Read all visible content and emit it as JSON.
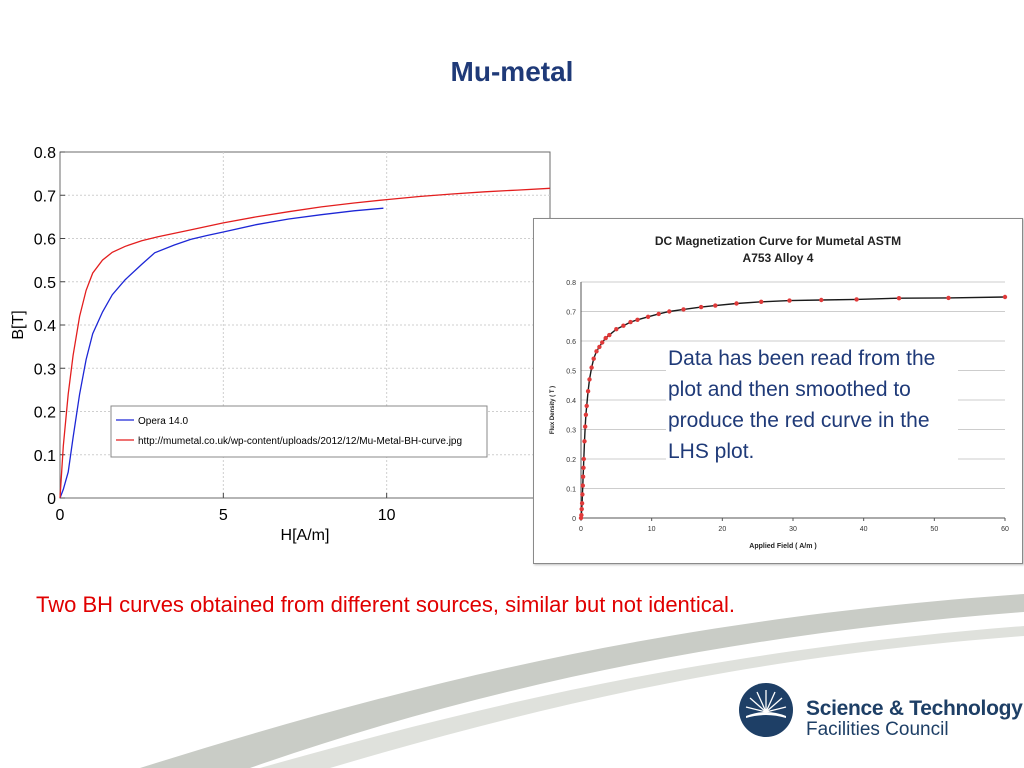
{
  "slide": {
    "title": "Mu-metal",
    "annotation": "Data has been read from the plot and then smoothed to produce the red curve in the LHS plot.",
    "caption": "Two BH curves obtained from different sources, similar but not identical.",
    "logo": {
      "line1": "Science & Technology",
      "line2": "Facilities Council",
      "icon": "stfc-logo-icon"
    }
  },
  "colors": {
    "title": "#1f3a78",
    "caption": "#e00000",
    "blue_series": "#1d27d6",
    "red_series": "#e31e1e",
    "rhs_line": "#1a1a1a",
    "rhs_marker": "#e03a3a"
  },
  "chart_data": [
    {
      "type": "line",
      "xlabel": "H[A/m]",
      "ylabel": "B[T]",
      "xlim": [
        0,
        15
      ],
      "ylim": [
        0,
        0.8
      ],
      "xticks": [
        "0",
        "5",
        "10"
      ],
      "yticks": [
        "0",
        "0.1",
        "0.2",
        "0.3",
        "0.4",
        "0.5",
        "0.6",
        "0.7",
        "0.8"
      ],
      "grid": true,
      "legend_position": "lower-right",
      "series": [
        {
          "name": "Opera 14.0",
          "color": "#1d27d6",
          "x": [
            0,
            0.1,
            0.25,
            0.4,
            0.6,
            0.8,
            1.0,
            1.3,
            1.6,
            2.0,
            2.5,
            2.9,
            3.5,
            4.0,
            4.5,
            5.0,
            6.0,
            7.0,
            8.0,
            9.0,
            9.9
          ],
          "y": [
            0,
            0.02,
            0.06,
            0.14,
            0.24,
            0.32,
            0.38,
            0.43,
            0.47,
            0.505,
            0.54,
            0.567,
            0.585,
            0.598,
            0.607,
            0.615,
            0.632,
            0.645,
            0.655,
            0.664,
            0.67
          ]
        },
        {
          "name": "http://mumetal.co.uk/wp-content/uploads/2012/12/Mu-Metal-BH-curve.jpg",
          "color": "#e31e1e",
          "x": [
            0,
            0.1,
            0.25,
            0.4,
            0.6,
            0.8,
            1.0,
            1.3,
            1.6,
            2.0,
            2.5,
            3.0,
            4.0,
            5.0,
            6.0,
            7.0,
            8.0,
            9.0,
            10.0,
            11.0,
            12.0,
            13.0,
            14.0,
            15.0
          ],
          "y": [
            0,
            0.12,
            0.24,
            0.33,
            0.42,
            0.48,
            0.52,
            0.55,
            0.568,
            0.582,
            0.595,
            0.604,
            0.62,
            0.636,
            0.65,
            0.662,
            0.673,
            0.682,
            0.69,
            0.697,
            0.703,
            0.708,
            0.712,
            0.716
          ]
        }
      ]
    },
    {
      "type": "line",
      "title": "DC Magnetization Curve for Mumetal ASTM A753 Alloy 4",
      "xlabel": "Applied Field ( A/m )",
      "ylabel": "Flux Density ( T )",
      "xlim": [
        0,
        60
      ],
      "ylim": [
        0,
        0.8
      ],
      "xticks": [
        "0",
        "10",
        "20",
        "30",
        "40",
        "50",
        "60"
      ],
      "yticks": [
        "0",
        "0.1",
        "0.2",
        "0.3",
        "0.4",
        "0.5",
        "0.6",
        "0.7",
        "0.8"
      ],
      "grid": true,
      "markers": true,
      "series": [
        {
          "color": "#1a1a1a",
          "x": [
            0,
            0.05,
            0.1,
            0.15,
            0.2,
            0.25,
            0.3,
            0.35,
            0.4,
            0.5,
            0.6,
            0.7,
            0.8,
            1.0,
            1.2,
            1.5,
            1.8,
            2.2,
            2.6,
            3.0,
            3.5,
            4.0,
            5.0,
            6.0,
            7.0,
            8.0,
            9.5,
            11.0,
            12.5,
            14.5,
            17.0,
            19.0,
            22.0,
            25.5,
            29.5,
            34.0,
            39.0,
            45.0,
            52.0,
            60.0
          ],
          "y": [
            0,
            0.01,
            0.03,
            0.05,
            0.08,
            0.11,
            0.14,
            0.17,
            0.2,
            0.26,
            0.31,
            0.35,
            0.38,
            0.43,
            0.47,
            0.51,
            0.54,
            0.565,
            0.58,
            0.595,
            0.61,
            0.62,
            0.64,
            0.652,
            0.664,
            0.672,
            0.682,
            0.692,
            0.7,
            0.707,
            0.715,
            0.72,
            0.727,
            0.733,
            0.737,
            0.739,
            0.741,
            0.745,
            0.746,
            0.749
          ]
        }
      ]
    }
  ]
}
